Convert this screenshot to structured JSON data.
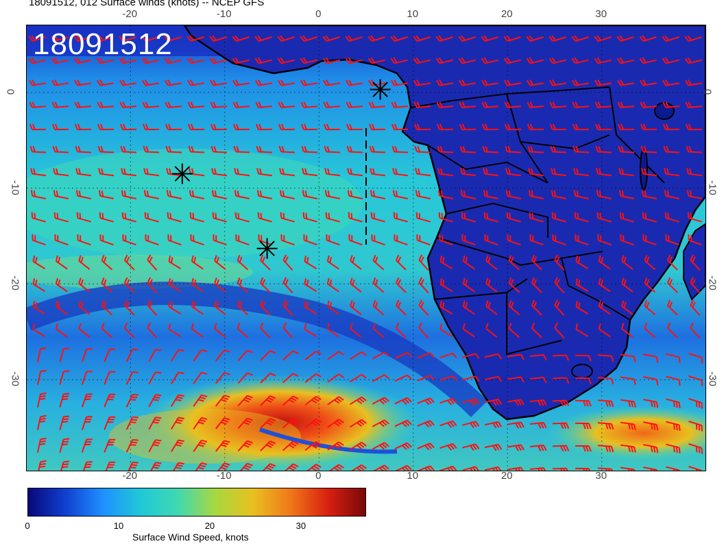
{
  "title": "18091512, 012 Surface winds (knots) -- NCEP GFS",
  "stamp": "18091512",
  "axes": {
    "lon_ticks": [
      "-20",
      "-10",
      "0",
      "10",
      "20",
      "30"
    ],
    "lat_ticks": [
      "0",
      "-10",
      "-20",
      "-30"
    ],
    "lon_range": [
      -31,
      41
    ],
    "lat_range": [
      -39.5,
      7
    ]
  },
  "colorbar": {
    "label": "Surface Wind Speed, knots",
    "ticks": [
      "0",
      "10",
      "20",
      "30"
    ],
    "range": [
      0,
      37
    ],
    "colors": [
      "#08087a",
      "#1040d0",
      "#1e90ff",
      "#20c8d8",
      "#40d8b0",
      "#a8d840",
      "#e8c020",
      "#f07818",
      "#d82010",
      "#7a0808"
    ]
  },
  "markers": [
    {
      "symbol": "asterisk",
      "lon": 6.5,
      "lat": 0.3
    },
    {
      "symbol": "asterisk",
      "lon": -14.5,
      "lat": -8.5
    },
    {
      "symbol": "asterisk",
      "lon": -5.5,
      "lat": -16.3
    }
  ],
  "wind_barb_color": "#ff1010"
}
